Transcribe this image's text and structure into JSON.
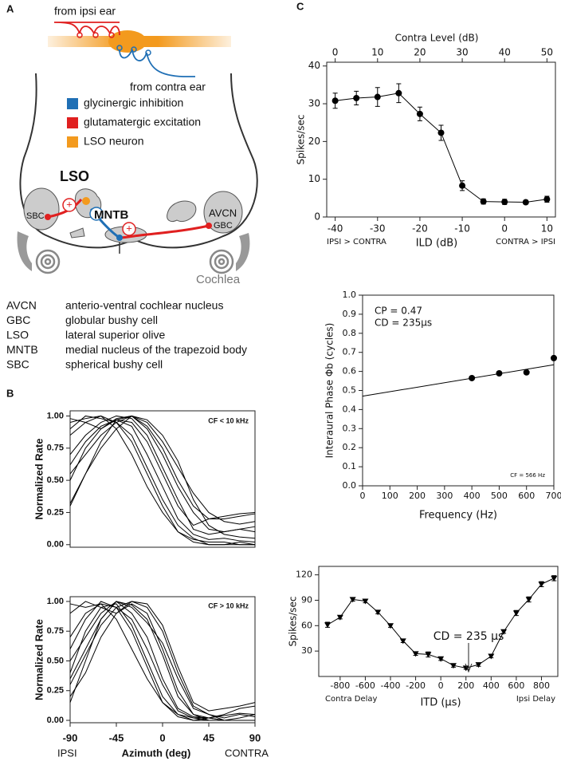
{
  "panels": [
    "A",
    "B",
    "C"
  ],
  "diagram": {
    "inputs": [
      "from ipsi ear",
      "from contra ear"
    ],
    "legend": [
      {
        "color": "#1f6fb5",
        "text": "glycinergic inhibition"
      },
      {
        "color": "#e02020",
        "text": "glutamatergic excitation"
      },
      {
        "color": "#f39a1e",
        "text": "LSO neuron"
      }
    ],
    "structures": [
      "LSO",
      "MNTB",
      "SBC",
      "AVCN",
      "GBC",
      "Cochlea"
    ],
    "signs": [
      "+",
      "-",
      "+"
    ],
    "abbreviations": [
      {
        "abbr": "AVCN",
        "text": "anterio-ventral cochlear nucleus"
      },
      {
        "abbr": "GBC",
        "text": "globular bushy cell"
      },
      {
        "abbr": "LSO",
        "text": "lateral superior olive"
      },
      {
        "abbr": "MNTB",
        "text": "medial nucleus of the trapezoid body"
      },
      {
        "abbr": "SBC",
        "text": "spherical bushy cell"
      }
    ]
  },
  "chart_data": [
    {
      "type": "line",
      "annotations": [
        "CF < 10 kHz"
      ],
      "ylabel": "Normalized Rate",
      "xlim": [
        -90,
        90
      ],
      "ylim": [
        -0.02,
        1.04
      ],
      "yticks": [
        {
          "value": 0,
          "label": "0.00"
        },
        0.25,
        {
          "value": 0.5,
          "label": "0.50"
        },
        0.75,
        {
          "value": 1,
          "label": "1.00"
        }
      ],
      "x": [
        -90,
        -75,
        -60,
        -45,
        -30,
        -15,
        0,
        15,
        30,
        45,
        60,
        75,
        90
      ],
      "series": [
        {
          "color": "#000000",
          "values": [
            0.3,
            0.55,
            0.8,
            0.97,
            0.95,
            0.8,
            0.55,
            0.3,
            0.15,
            0.2,
            0.22,
            0.24,
            0.25
          ]
        },
        {
          "color": "#000000",
          "values": [
            0.5,
            0.75,
            0.9,
            0.98,
            1.0,
            0.9,
            0.7,
            0.45,
            0.25,
            0.12,
            0.1,
            0.12,
            0.14
          ]
        },
        {
          "color": "#000000",
          "values": [
            0.9,
            1.0,
            0.98,
            0.95,
            0.85,
            0.6,
            0.35,
            0.15,
            0.05,
            0,
            0,
            0,
            0
          ]
        },
        {
          "color": "#000000",
          "values": [
            0.95,
            0.98,
            1.0,
            0.95,
            0.8,
            0.55,
            0.3,
            0.1,
            0.02,
            0,
            0,
            0.02,
            0
          ]
        },
        {
          "color": "#000000",
          "values": [
            0.7,
            0.85,
            0.95,
            1.0,
            0.98,
            0.85,
            0.6,
            0.35,
            0.12,
            0.08,
            0.1,
            0.12,
            0.1
          ]
        },
        {
          "color": "#000000",
          "values": [
            0.62,
            0.8,
            0.92,
            0.97,
            1.0,
            0.92,
            0.75,
            0.5,
            0.3,
            0.2,
            0.2,
            0.22,
            0.24
          ]
        },
        {
          "color": "#000000",
          "values": [
            0.55,
            0.7,
            0.85,
            0.95,
            1.0,
            0.95,
            0.8,
            0.6,
            0.4,
            0.25,
            0.18,
            0.16,
            0.18
          ]
        },
        {
          "color": "#000000",
          "values": [
            0.85,
            0.95,
            1.0,
            0.9,
            0.7,
            0.45,
            0.25,
            0.1,
            0.04,
            0.02,
            0.02,
            0,
            0
          ]
        },
        {
          "color": "#000000",
          "values": [
            0.32,
            0.55,
            0.75,
            0.9,
            1.0,
            0.97,
            0.85,
            0.65,
            0.35,
            0.15,
            0.08,
            0.06,
            0.05
          ]
        },
        {
          "color": "#000000",
          "values": [
            0.98,
            0.95,
            0.9,
            0.97,
            0.92,
            0.7,
            0.45,
            0.2,
            0.08,
            0.04,
            0.05,
            0.03,
            0.02
          ]
        }
      ]
    },
    {
      "type": "line",
      "annotations": [
        "CF > 10 kHz",
        "IPSI",
        "CONTRA"
      ],
      "ylabel": "Normalized Rate",
      "xlabel": "Azimuth (deg)",
      "xlim": [
        -90,
        90
      ],
      "ylim": [
        -0.02,
        1.04
      ],
      "xticks": [
        -90,
        -45,
        0,
        45,
        90
      ],
      "yticks": [
        {
          "value": 0,
          "label": "0.00"
        },
        0.25,
        {
          "value": 0.5,
          "label": "0.50"
        },
        0.75,
        {
          "value": 1,
          "label": "1.00"
        }
      ],
      "x": [
        -90,
        -75,
        -60,
        -45,
        -30,
        -15,
        0,
        15,
        30,
        45,
        60,
        75,
        90
      ],
      "series": [
        {
          "color": "#000000",
          "values": [
            0.15,
            0.5,
            0.85,
            1.0,
            0.9,
            0.7,
            0.35,
            0.1,
            0.03,
            0.02,
            0,
            0,
            0
          ]
        },
        {
          "color": "#000000",
          "values": [
            0.4,
            0.75,
            0.95,
            0.98,
            0.8,
            0.5,
            0.2,
            0.05,
            0,
            0.02,
            0.05,
            0.1,
            0.12
          ]
        },
        {
          "color": "#000000",
          "values": [
            0.9,
            1.0,
            0.95,
            0.9,
            0.98,
            0.9,
            0.6,
            0.25,
            0.05,
            0,
            0,
            0,
            0
          ]
        },
        {
          "color": "#000000",
          "values": [
            0.3,
            0.55,
            0.8,
            0.95,
            1.0,
            0.95,
            0.75,
            0.4,
            0.12,
            0.05,
            0.02,
            0.05,
            0.03
          ]
        },
        {
          "color": "#000000",
          "values": [
            0.6,
            0.85,
            1.0,
            0.95,
            0.85,
            0.6,
            0.3,
            0.08,
            0.02,
            0,
            0,
            0,
            0
          ]
        },
        {
          "color": "#000000",
          "values": [
            0.2,
            0.4,
            0.7,
            0.9,
            1.0,
            0.98,
            0.8,
            0.45,
            0.15,
            0.08,
            0.1,
            0.12,
            0.15
          ]
        },
        {
          "color": "#000000",
          "values": [
            0.98,
            0.95,
            0.98,
            0.85,
            0.6,
            0.35,
            0.15,
            0.05,
            0.02,
            0.02,
            0,
            0,
            0
          ]
        },
        {
          "color": "#000000",
          "values": [
            0.5,
            0.7,
            0.9,
            1.0,
            0.97,
            0.85,
            0.55,
            0.2,
            0.05,
            0.02,
            0.04,
            0.06,
            0.05
          ]
        },
        {
          "color": "#000000",
          "values": [
            0.7,
            0.9,
            0.98,
            0.95,
            0.75,
            0.45,
            0.15,
            0.03,
            0,
            0,
            0,
            0,
            0
          ]
        },
        {
          "color": "#000000",
          "values": [
            0.35,
            0.6,
            0.85,
            1.0,
            0.95,
            0.82,
            0.65,
            0.35,
            0.1,
            0.05,
            0,
            0.02,
            0.05
          ]
        }
      ]
    },
    {
      "type": "line",
      "marker": "circle",
      "x2label": "Contra Level (dB)",
      "xlabel": "ILD (dB)",
      "ylabel": "Spikes/sec",
      "annotations": [
        "IPSI > CONTRA",
        "CONTRA > IPSI"
      ],
      "xlim": [
        -42,
        12
      ],
      "ylim": [
        0,
        41
      ],
      "x2lim": [
        -2,
        52
      ],
      "xticks": [
        -40,
        -30,
        -20,
        -10,
        0,
        10
      ],
      "x2ticks": [
        0,
        10,
        20,
        30,
        40,
        50
      ],
      "yticks": [
        0,
        10,
        20,
        30,
        40
      ],
      "x": [
        -40,
        -35,
        -30,
        -25,
        -20,
        -15,
        -10,
        -5,
        0,
        5,
        10
      ],
      "series": [
        {
          "color": "#000000",
          "values": [
            30.8,
            31.5,
            31.8,
            32.8,
            27.3,
            22.3,
            8.3,
            4.1,
            4.0,
            3.9,
            4.7
          ],
          "errors": [
            2.0,
            1.8,
            2.5,
            2.5,
            1.8,
            2.0,
            1.3,
            0.7,
            0.7,
            0.5,
            0.8
          ]
        }
      ]
    },
    {
      "type": "scatter",
      "xlabel": "Frequency (Hz)",
      "ylabel": "Interaural Phase Φb (cycles)",
      "annotations": [
        "CP = 0.47",
        "CD = 235µs",
        "CF = 566 Hz"
      ],
      "xlim": [
        0,
        700
      ],
      "ylim": [
        0,
        1
      ],
      "xticks": [
        0,
        100,
        200,
        300,
        400,
        500,
        600,
        700
      ],
      "yticks": [
        {
          "value": 0,
          "label": "0.0"
        },
        0.1,
        0.2,
        0.3,
        0.4,
        0.5,
        0.6,
        0.7,
        0.8,
        0.9,
        {
          "value": 1,
          "label": "1.0"
        }
      ],
      "x": [
        400,
        500,
        600,
        700
      ],
      "series": [
        {
          "color": "#000000",
          "values": [
            0.565,
            0.59,
            0.595,
            0.67
          ]
        }
      ],
      "fit": {
        "color": "#000000",
        "x": [
          0,
          700
        ],
        "values": [
          0.47,
          0.635
        ]
      }
    },
    {
      "type": "line",
      "marker": "triangle",
      "xlabel": "ITD (µs)",
      "ylabel": "Spikes/sec",
      "annotations": [
        "CD = 235 µs",
        "Contra Delay",
        "Ipsi Delay"
      ],
      "xlim": [
        -970,
        930
      ],
      "ylim": [
        0,
        130
      ],
      "xticks": [
        -800,
        -600,
        -400,
        -200,
        0,
        200,
        400,
        600,
        800
      ],
      "yticks": [
        30,
        60,
        90,
        120
      ],
      "x": [
        -900,
        -800,
        -700,
        -600,
        -500,
        -400,
        -300,
        -200,
        -100,
        0,
        100,
        200,
        300,
        400,
        500,
        600,
        700,
        800,
        900
      ],
      "series": [
        {
          "color": "#000000",
          "values": [
            61,
            70,
            91,
            89,
            76,
            60,
            42,
            27,
            26,
            21,
            13,
            10,
            14,
            24,
            53,
            75,
            91,
            109,
            116
          ],
          "errors": [
            3,
            2,
            2,
            2,
            2,
            2,
            2,
            2,
            3,
            2,
            2,
            1.5,
            2,
            2,
            2,
            3,
            3,
            3,
            3
          ]
        }
      ]
    }
  ]
}
